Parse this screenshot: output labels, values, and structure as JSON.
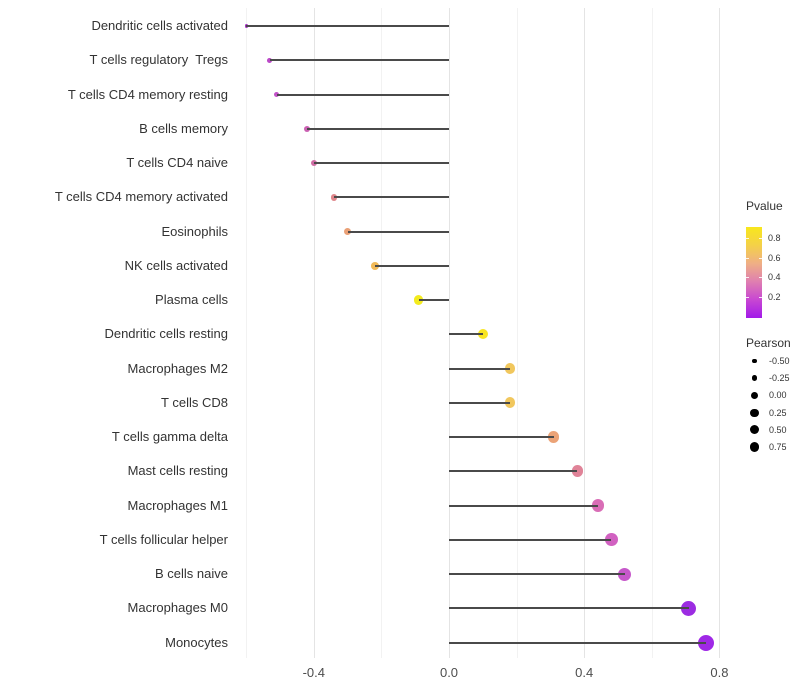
{
  "chart_data": {
    "type": "scatter",
    "variant": "lollipop",
    "title": "",
    "xlabel": "",
    "ylabel": "",
    "xlim": [
      -0.68,
      0.88
    ],
    "x_major_ticks": [
      -0.4,
      0.0,
      0.4,
      0.8
    ],
    "x_tick_labels": [
      "-0.4",
      "0.0",
      "0.4",
      "0.8"
    ],
    "x_minor_ticks": [
      -0.6,
      -0.2,
      0.2,
      0.6
    ],
    "baseline": 0.0,
    "grid": true,
    "points": [
      {
        "label": "Dendritic cells activated",
        "pearson": -0.6,
        "color": "#a732c6",
        "radius": 1.6
      },
      {
        "label": "T cells regulatory  Tregs",
        "pearson": -0.53,
        "color": "#bb49c8",
        "radius": 2.4
      },
      {
        "label": "T cells CD4 memory resting",
        "pearson": -0.51,
        "color": "#c252c8",
        "radius": 2.6
      },
      {
        "label": "B cells memory",
        "pearson": -0.42,
        "color": "#ca60b2",
        "radius": 3.0
      },
      {
        "label": "T cells CD4 naive",
        "pearson": -0.4,
        "color": "#cf6da4",
        "radius": 3.1
      },
      {
        "label": "T cells CD4 memory activated",
        "pearson": -0.34,
        "color": "#df868b",
        "radius": 3.4
      },
      {
        "label": "Eosinophils",
        "pearson": -0.3,
        "color": "#eaa076",
        "radius": 3.5
      },
      {
        "label": "NK cells activated",
        "pearson": -0.22,
        "color": "#f2ba58",
        "radius": 3.9
      },
      {
        "label": "Plasma cells",
        "pearson": -0.09,
        "color": "#f3eb1e",
        "radius": 4.6
      },
      {
        "label": "Dendritic cells resting",
        "pearson": 0.1,
        "color": "#f8e523",
        "radius": 5.0
      },
      {
        "label": "Macrophages M2",
        "pearson": 0.18,
        "color": "#f1c75d",
        "radius": 5.3
      },
      {
        "label": "T cells CD8",
        "pearson": 0.18,
        "color": "#f1c75d",
        "radius": 5.3
      },
      {
        "label": "T cells gamma delta",
        "pearson": 0.31,
        "color": "#eba377",
        "radius": 5.6
      },
      {
        "label": "Mast cells resting",
        "pearson": 0.38,
        "color": "#e08398",
        "radius": 5.9
      },
      {
        "label": "Macrophages M1",
        "pearson": 0.44,
        "color": "#d96db6",
        "radius": 6.2
      },
      {
        "label": "T cells follicular helper",
        "pearson": 0.48,
        "color": "#d161c1",
        "radius": 6.4
      },
      {
        "label": "B cells naive",
        "pearson": 0.52,
        "color": "#c658ca",
        "radius": 6.5
      },
      {
        "label": "Macrophages M0",
        "pearson": 0.71,
        "color": "#9c2ce2",
        "radius": 7.5
      },
      {
        "label": "Monocytes",
        "pearson": 0.76,
        "color": "#9f28e6",
        "radius": 8.0
      }
    ],
    "legend": {
      "position": "right",
      "pvalue": {
        "title": "Pvalue",
        "tick_labels": [
          "0.8",
          "0.6",
          "0.4",
          "0.2"
        ],
        "gradient_top_to_bottom": [
          "#f8e71c",
          "#f4d148",
          "#efaf85",
          "#df7fb0",
          "#c847d2",
          "#a21ae9"
        ]
      },
      "pearson": {
        "title": "Pearson",
        "entries": [
          "-0.50",
          "-0.25",
          "0.00",
          "0.25",
          "0.50",
          "0.75"
        ],
        "radii": [
          2.2,
          2.9,
          3.6,
          4.1,
          4.5,
          4.9
        ],
        "dot_color": "#000000"
      }
    },
    "style": {
      "background": "#ffffff",
      "stick_color": "#4a4a4a",
      "grid_major_color": "#e4e4e4",
      "grid_minor_color": "#f2f2f2",
      "axis_text_color": "#4d4d4d",
      "label_text_color": "#333333"
    }
  }
}
